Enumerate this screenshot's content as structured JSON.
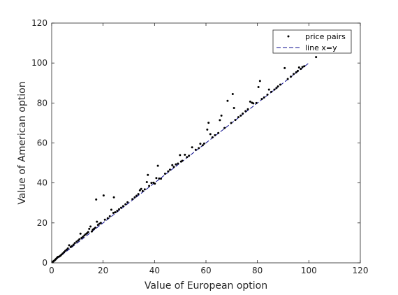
{
  "chart_data": {
    "type": "scatter",
    "xlabel": "Value of European option",
    "ylabel": "Value of American option",
    "xlim": [
      0,
      120
    ],
    "ylim": [
      0,
      120
    ],
    "xticks": [
      "0",
      "20",
      "40",
      "60",
      "80",
      "100",
      "120"
    ],
    "yticks": [
      "0",
      "20",
      "40",
      "60",
      "80",
      "100",
      "120"
    ],
    "legend_position": "top-right",
    "grid": false,
    "colors": {
      "points": "#000000",
      "line": "#0b0b8f",
      "axes": "#262626"
    },
    "series": [
      {
        "name": "price pairs",
        "kind": "points",
        "points": [
          [
            0.3,
            0.3
          ],
          [
            0.6,
            0.7
          ],
          [
            0.9,
            1.0
          ],
          [
            1.2,
            1.3
          ],
          [
            1.5,
            1.7
          ],
          [
            1.8,
            2.1
          ],
          [
            2.1,
            2.6
          ],
          [
            2.5,
            3.0
          ],
          [
            3.0,
            3.2
          ],
          [
            3.4,
            3.6
          ],
          [
            3.8,
            4.1
          ],
          [
            4.3,
            4.7
          ],
          [
            4.8,
            5.4
          ],
          [
            5.3,
            6.0
          ],
          [
            5.8,
            6.6
          ],
          [
            6.3,
            7.2
          ],
          [
            6.8,
            8.8
          ],
          [
            7.4,
            7.9
          ],
          [
            7.9,
            8.4
          ],
          [
            8.5,
            9.1
          ],
          [
            9.0,
            9.9
          ],
          [
            9.7,
            10.6
          ],
          [
            10.3,
            11.2
          ],
          [
            10.8,
            11.8
          ],
          [
            11.2,
            14.6
          ],
          [
            11.6,
            12.4
          ],
          [
            12.1,
            13.0
          ],
          [
            12.7,
            13.7
          ],
          [
            13.2,
            14.3
          ],
          [
            13.7,
            14.8
          ],
          [
            14.2,
            15.4
          ],
          [
            14.6,
            17.0
          ],
          [
            15.1,
            18.2
          ],
          [
            15.6,
            15.7
          ],
          [
            16.0,
            16.6
          ],
          [
            16.5,
            17.1
          ],
          [
            17.0,
            17.6
          ],
          [
            17.3,
            31.7
          ],
          [
            17.6,
            20.6
          ],
          [
            18.0,
            19.0
          ],
          [
            18.6,
            19.6
          ],
          [
            19.1,
            20.0
          ],
          [
            20.2,
            33.7
          ],
          [
            20.7,
            21.6
          ],
          [
            21.8,
            22.3
          ],
          [
            22.6,
            23.3
          ],
          [
            23.2,
            26.6
          ],
          [
            24.0,
            25.0
          ],
          [
            24.2,
            32.8
          ],
          [
            24.7,
            25.3
          ],
          [
            25.5,
            26.0
          ],
          [
            26.2,
            26.8
          ],
          [
            27.0,
            27.6
          ],
          [
            27.8,
            28.4
          ],
          [
            28.7,
            29.3
          ],
          [
            29.5,
            30.3
          ],
          [
            31.4,
            31.9
          ],
          [
            32.3,
            32.8
          ],
          [
            33.0,
            33.6
          ],
          [
            33.7,
            34.4
          ],
          [
            34.3,
            36.3
          ],
          [
            34.8,
            37.0
          ],
          [
            35.4,
            35.9
          ],
          [
            36.2,
            36.8
          ],
          [
            37.0,
            40.4
          ],
          [
            37.4,
            44.0
          ],
          [
            37.9,
            38.5
          ],
          [
            38.8,
            40.0
          ],
          [
            39.6,
            40.1
          ],
          [
            40.1,
            39.6
          ],
          [
            40.7,
            42.4
          ],
          [
            41.3,
            48.6
          ],
          [
            41.8,
            42.2
          ],
          [
            42.5,
            42.1
          ],
          [
            44.1,
            44.6
          ],
          [
            45.3,
            45.8
          ],
          [
            46.0,
            46.6
          ],
          [
            46.9,
            48.9
          ],
          [
            47.5,
            48.0
          ],
          [
            48.3,
            49.3
          ],
          [
            49.1,
            49.7
          ],
          [
            49.9,
            53.9
          ],
          [
            50.3,
            50.7
          ],
          [
            50.8,
            51.1
          ],
          [
            51.8,
            54.1
          ],
          [
            52.6,
            52.9
          ],
          [
            53.4,
            53.6
          ],
          [
            54.6,
            57.8
          ],
          [
            56.0,
            56.6
          ],
          [
            57.2,
            57.4
          ],
          [
            57.8,
            59.6
          ],
          [
            58.7,
            58.8
          ],
          [
            59.3,
            59.7
          ],
          [
            60.5,
            66.7
          ],
          [
            61.0,
            70.1
          ],
          [
            61.7,
            64.4
          ],
          [
            62.5,
            62.8
          ],
          [
            63.5,
            63.9
          ],
          [
            64.8,
            65.0
          ],
          [
            65.4,
            71.4
          ],
          [
            66.0,
            73.7
          ],
          [
            67.2,
            67.5
          ],
          [
            68.4,
            81.1
          ],
          [
            69.8,
            70.0
          ],
          [
            70.4,
            84.5
          ],
          [
            70.9,
            77.5
          ],
          [
            71.4,
            71.5
          ],
          [
            72.6,
            72.9
          ],
          [
            73.5,
            73.7
          ],
          [
            74.3,
            74.7
          ],
          [
            75.4,
            75.9
          ],
          [
            76.3,
            76.9
          ],
          [
            77.2,
            80.7
          ],
          [
            77.9,
            80.1
          ],
          [
            78.4,
            79.8
          ],
          [
            79.6,
            80.0
          ],
          [
            80.4,
            88.0
          ],
          [
            81.0,
            91.0
          ],
          [
            81.7,
            82.0
          ],
          [
            82.6,
            82.8
          ],
          [
            83.9,
            84.2
          ],
          [
            84.5,
            86.7
          ],
          [
            85.4,
            85.6
          ],
          [
            86.6,
            86.7
          ],
          [
            87.4,
            87.5
          ],
          [
            88.0,
            88.3
          ],
          [
            88.9,
            89.2
          ],
          [
            90.6,
            97.5
          ],
          [
            91.8,
            92.0
          ],
          [
            93.0,
            93.2
          ],
          [
            94.1,
            94.5
          ],
          [
            95.1,
            95.4
          ],
          [
            95.7,
            96.1
          ],
          [
            96.2,
            97.8
          ],
          [
            96.9,
            97.1
          ],
          [
            97.5,
            98.0
          ],
          [
            98.2,
            98.4
          ],
          [
            102.8,
            103.0
          ]
        ]
      },
      {
        "name": "line x=y",
        "kind": "line",
        "points": [
          [
            0,
            0
          ],
          [
            100,
            100
          ]
        ]
      }
    ]
  }
}
